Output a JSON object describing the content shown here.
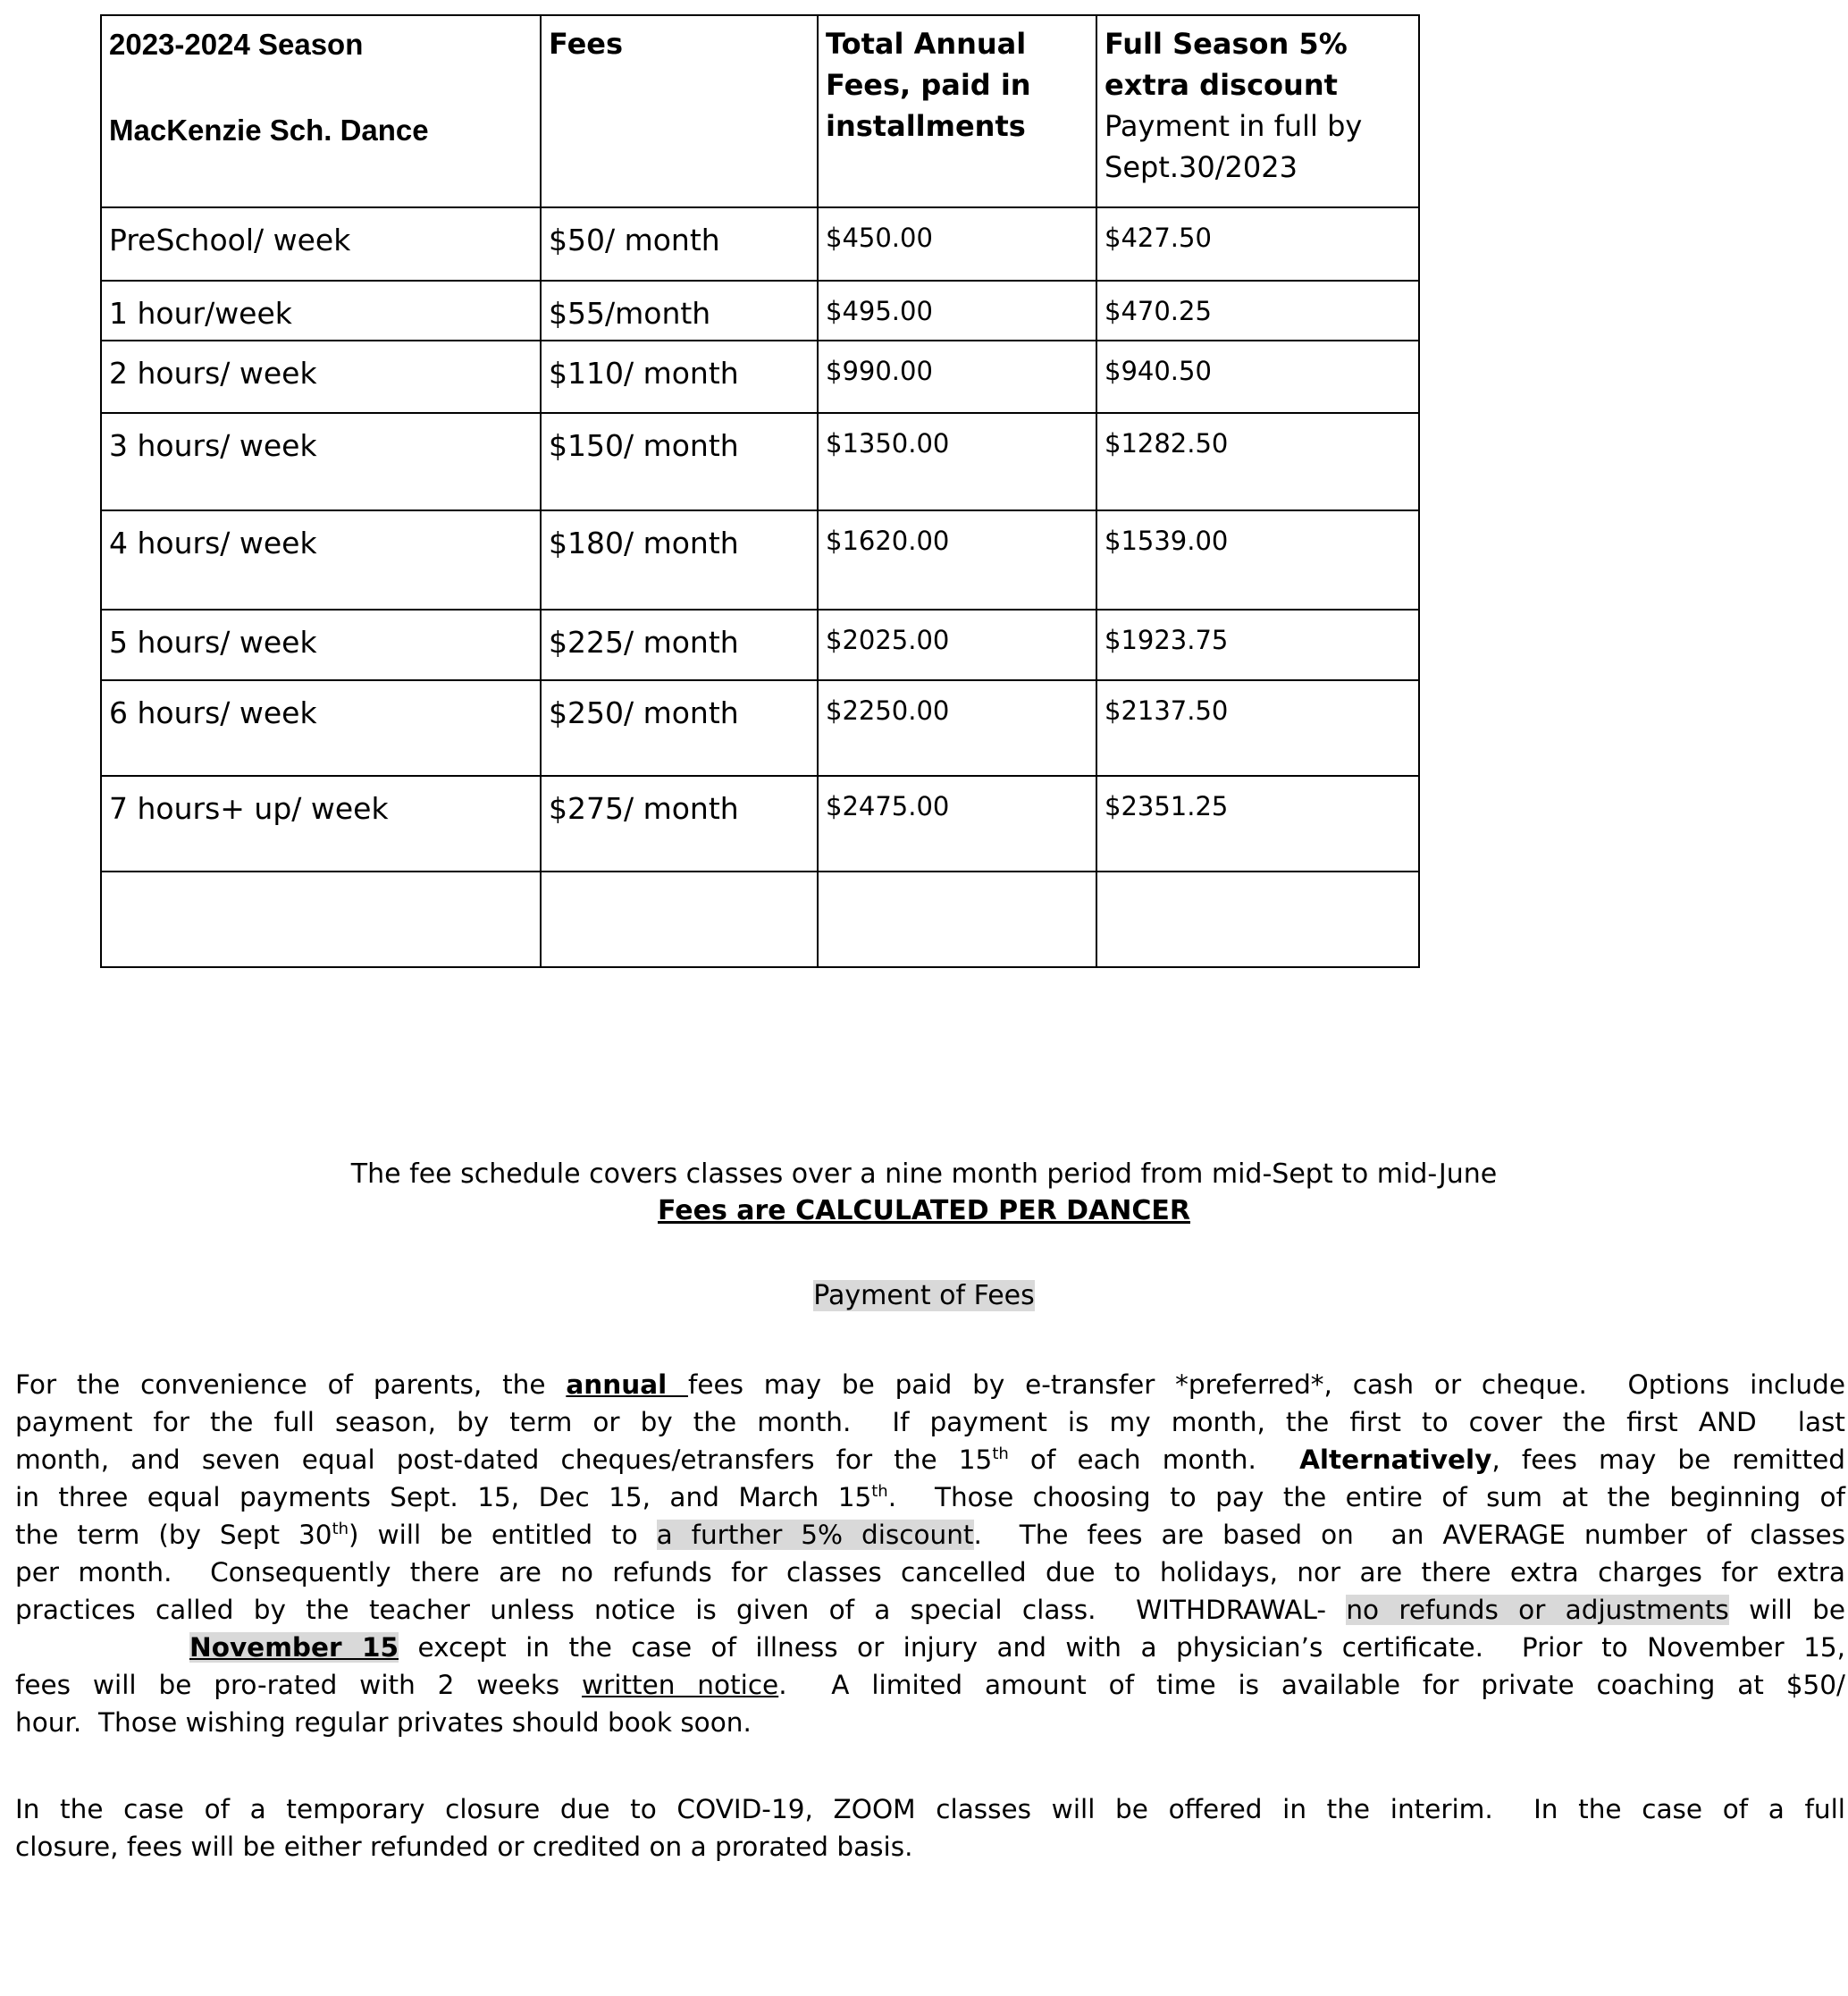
{
  "table": {
    "header": {
      "season": "2023-2024 Season",
      "school": "MacKenzie Sch. Dance",
      "fees": "Fees",
      "total": "Total Annual Fees, paid in installments",
      "discount_bold": "Full Season 5% extra discount",
      "discount_note": "Payment in full by Sept.30/2023"
    },
    "rows": [
      {
        "label": "PreSchool/ week",
        "fee": "$50/ month",
        "total": "$450.00",
        "discount": "$427.50"
      },
      {
        "label": "1 hour/week",
        "fee": "$55/month",
        "total": "$495.00",
        "discount": "$470.25"
      },
      {
        "label": "2 hours/ week",
        "fee": "$110/ month",
        "total": "$990.00",
        "discount": "$940.50"
      },
      {
        "label": "3 hours/ week",
        "fee": "$150/ month",
        "total": "$1350.00",
        "discount": "$1282.50"
      },
      {
        "label": "4 hours/ week",
        "fee": "$180/ month",
        "total": "$1620.00",
        "discount": "$1539.00"
      },
      {
        "label": "5 hours/ week",
        "fee": "$225/ month",
        "total": "$2025.00",
        "discount": "$1923.75"
      },
      {
        "label": "6 hours/ week",
        "fee": "$250/ month",
        "total": "$2250.00",
        "discount": "$2137.50"
      },
      {
        "label": "7 hours+ up/ week",
        "fee": "$275/ month",
        "total": "$2475.00",
        "discount": "$2351.25"
      },
      {
        "label": "",
        "fee": "",
        "total": "",
        "discount": ""
      }
    ]
  },
  "notes": {
    "schedule": "The fee schedule covers classes over a nine month period from mid-Sept to mid-June",
    "per_dancer": "Fees are CALCULATED PER DANCER",
    "payment_heading": "Payment of Fees"
  },
  "paragraph1": [
    [
      {
        "t": "For the convenience of parents, the "
      },
      {
        "t": "annual ",
        "b": 1,
        "u": 1
      },
      {
        "t": "fees may be paid by e-transfer *preferred*, cash or cheque.  Options include"
      }
    ],
    [
      {
        "t": "payment for the full season, by term or by the month.  If payment is my month, the first to cover the first AND  last"
      }
    ],
    [
      {
        "t": "month, and seven equal post-dated cheques/etransfers for the 15"
      },
      {
        "t": "th",
        "sup": 1
      },
      {
        "t": " of each month.  "
      },
      {
        "t": "Alternatively",
        "b": 1
      },
      {
        "t": ", fees may be remitted"
      }
    ],
    [
      {
        "t": "in three equal payments Sept. 15, Dec 15, and March 15"
      },
      {
        "t": "th",
        "sup": 1
      },
      {
        "t": ".  Those choosing to pay the entire of sum at the beginning of"
      }
    ],
    [
      {
        "t": "the term (by Sept 30"
      },
      {
        "t": "th",
        "sup": 1
      },
      {
        "t": ") will be entitled to "
      },
      {
        "t": "a further 5% discount",
        "h": 1
      },
      {
        "t": ".  The fees are based on  an AVERAGE number of classes"
      }
    ],
    [
      {
        "t": "per month.  Consequently there are no refunds for classes cancelled due to holidays, nor are there extra charges for extra"
      }
    ],
    [
      {
        "t": "practices called by the teacher unless notice is given of a special class.  WITHDRAWAL- "
      },
      {
        "t": "no refunds or adjustments",
        "h": 1
      },
      {
        "t": " will be"
      }
    ],
    [
      {
        "t": "November 15",
        "b": 1,
        "u": 1,
        "h": 1,
        "indent": 1
      },
      {
        "t": " except in the case of illness or injury and with a physician’s certificate.  Prior to November 15,"
      }
    ],
    [
      {
        "t": "fees will be pro-rated with 2 weeks "
      },
      {
        "t": "written notice",
        "u": 1
      },
      {
        "t": ".  A limited amount of time is available for private coaching at $50/"
      }
    ],
    [
      {
        "t": "hour.  Those wishing regular privates should book soon."
      }
    ]
  ],
  "paragraph2": [
    [
      {
        "t": "In the case of a temporary closure due to COVID-19, ZOOM classes will be offered in the interim.  In the case of a full"
      }
    ],
    [
      {
        "t": "closure, fees will be either refunded or credited on a prorated basis."
      }
    ]
  ]
}
